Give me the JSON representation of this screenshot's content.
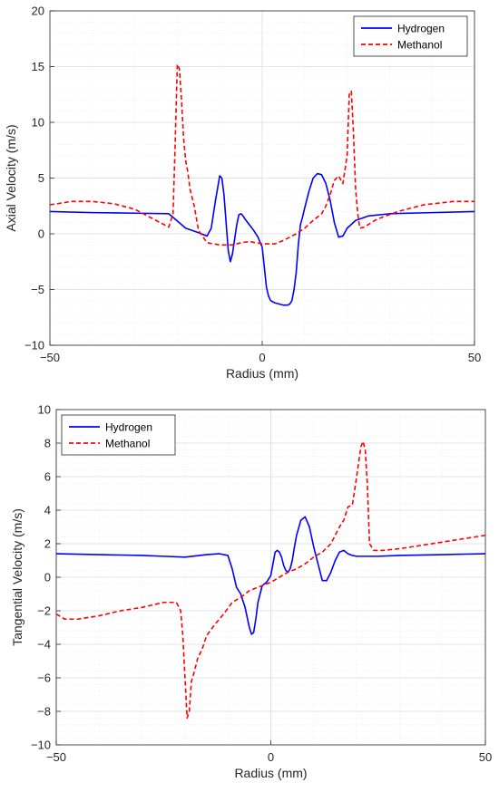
{
  "chart_data": [
    {
      "type": "line",
      "xlabel": "Radius (mm)",
      "ylabel": "Axial Velocity (m/s)",
      "xlim": [
        -50,
        50
      ],
      "ylim": [
        -10,
        20
      ],
      "xticks": [
        -50,
        0,
        50
      ],
      "xtick_labels": [
        "−50",
        "0",
        "50"
      ],
      "yticks": [
        -10,
        -5,
        0,
        5,
        10,
        15,
        20
      ],
      "ytick_labels": [
        "−10",
        "−5",
        "0",
        "5",
        "10",
        "15",
        "20"
      ],
      "grid": true,
      "minor_grid": true,
      "legend_position": "top-right",
      "series": [
        {
          "name": "Hydrogen",
          "color": "#0000ff",
          "style": "solid",
          "x": [
            -50,
            -40,
            -30,
            -22,
            -18,
            -15,
            -13,
            -12,
            -11,
            -10,
            -9.5,
            -9,
            -8.5,
            -8,
            -7.5,
            -7,
            -6.5,
            -6,
            -5.5,
            -5,
            -4.5,
            -4,
            -3,
            -2,
            -1,
            0,
            0.5,
            1,
            1.5,
            2,
            3,
            4,
            5,
            6,
            6.5,
            7,
            7.5,
            8,
            8.5,
            9,
            9.5,
            10,
            11,
            12,
            13,
            14,
            15,
            16,
            17,
            18,
            19,
            20,
            22,
            25,
            30,
            40,
            50
          ],
          "y": [
            2.0,
            1.9,
            1.85,
            1.8,
            0.5,
            0.1,
            -0.2,
            0.5,
            3.0,
            5.2,
            5.0,
            3.5,
            1.0,
            -1.5,
            -2.5,
            -1.8,
            -0.5,
            0.8,
            1.7,
            1.8,
            1.6,
            1.3,
            0.8,
            0.3,
            -0.3,
            -1.2,
            -3.0,
            -4.8,
            -5.6,
            -6.0,
            -6.2,
            -6.3,
            -6.4,
            -6.4,
            -6.3,
            -6.0,
            -5.0,
            -3.5,
            -1.0,
            0.8,
            1.5,
            2.3,
            3.8,
            5.0,
            5.4,
            5.3,
            4.5,
            3.0,
            1.0,
            -0.3,
            -0.2,
            0.5,
            1.2,
            1.6,
            1.8,
            1.9,
            2.0
          ]
        },
        {
          "name": "Methanol",
          "color": "#ff0000",
          "style": "dashed",
          "x": [
            -50,
            -45,
            -40,
            -35,
            -30,
            -25,
            -22,
            -21,
            -20.5,
            -20,
            -19.5,
            -19,
            -18.5,
            -18,
            -17.5,
            -17,
            -16,
            -15,
            -13,
            -10,
            -7,
            -5,
            -3,
            0,
            3,
            5,
            8,
            10,
            12,
            14,
            15,
            16,
            17,
            18,
            19,
            20,
            20.5,
            21,
            21.5,
            22,
            22.5,
            23,
            24,
            27,
            32,
            38,
            45,
            50
          ],
          "y": [
            2.6,
            2.9,
            2.9,
            2.7,
            2.2,
            1.2,
            0.6,
            1.8,
            8.0,
            15.2,
            14.8,
            12.0,
            8.5,
            6.5,
            5.5,
            4.0,
            2.5,
            0.3,
            -0.8,
            -1.0,
            -1.0,
            -0.8,
            -0.7,
            -0.9,
            -0.9,
            -0.6,
            0.0,
            0.5,
            1.2,
            1.8,
            2.5,
            3.5,
            4.8,
            5.2,
            4.5,
            7.0,
            12.5,
            12.8,
            9.0,
            4.0,
            1.8,
            0.5,
            0.6,
            1.3,
            2.0,
            2.6,
            2.9,
            2.9
          ]
        }
      ]
    },
    {
      "type": "line",
      "xlabel": "Radius (mm)",
      "ylabel": "Tangential Velocity (m/s)",
      "xlim": [
        -50,
        50
      ],
      "ylim": [
        -10,
        10
      ],
      "xticks": [
        -50,
        0,
        50
      ],
      "xtick_labels": [
        "−50",
        "0",
        "50"
      ],
      "yticks": [
        -10,
        -8,
        -6,
        -4,
        -2,
        0,
        2,
        4,
        6,
        8,
        10
      ],
      "ytick_labels": [
        "−10",
        "−8",
        "−6",
        "−4",
        "−2",
        "0",
        "2",
        "4",
        "6",
        "8",
        "10"
      ],
      "grid": true,
      "minor_grid": true,
      "legend_position": "top-left",
      "series": [
        {
          "name": "Hydrogen",
          "color": "#0000ff",
          "style": "solid",
          "x": [
            -50,
            -40,
            -30,
            -25,
            -20,
            -15,
            -12,
            -10,
            -9,
            -8,
            -7,
            -6,
            -5,
            -4.5,
            -4,
            -3.5,
            -3,
            -2,
            -1,
            0,
            0.5,
            1,
            1.5,
            2,
            2.5,
            3,
            3.5,
            4,
            4.5,
            5,
            5.5,
            6,
            7,
            8,
            9,
            10,
            11,
            12,
            13,
            14,
            15,
            16,
            17,
            18,
            19,
            20,
            25,
            30,
            40,
            50
          ],
          "y": [
            1.4,
            1.35,
            1.3,
            1.25,
            1.2,
            1.35,
            1.4,
            1.3,
            0.5,
            -0.6,
            -1.0,
            -1.8,
            -3.0,
            -3.4,
            -3.3,
            -2.5,
            -1.5,
            -0.5,
            -0.3,
            0.1,
            0.8,
            1.5,
            1.6,
            1.5,
            1.2,
            0.7,
            0.4,
            0.3,
            0.5,
            1.0,
            1.8,
            2.5,
            3.4,
            3.6,
            3.0,
            1.8,
            0.8,
            -0.2,
            -0.2,
            0.3,
            1.0,
            1.5,
            1.6,
            1.4,
            1.3,
            1.25,
            1.25,
            1.3,
            1.35,
            1.4
          ]
        },
        {
          "name": "Methanol",
          "color": "#ff0000",
          "style": "dashed",
          "x": [
            -50,
            -48,
            -45,
            -40,
            -35,
            -30,
            -25,
            -22,
            -21,
            -20.5,
            -20,
            -19.5,
            -19,
            -18.5,
            -18,
            -17,
            -16,
            -15,
            -13,
            -11,
            -9,
            -7,
            -5,
            -3,
            -1,
            0,
            2,
            4,
            6,
            8,
            10,
            12,
            14,
            16,
            17,
            18,
            19,
            20,
            21,
            21.5,
            22,
            22.5,
            23,
            24,
            26,
            30,
            35,
            40,
            45,
            50
          ],
          "y": [
            -2.2,
            -2.5,
            -2.5,
            -2.3,
            -2.0,
            -1.8,
            -1.5,
            -1.5,
            -2.0,
            -3.5,
            -6.0,
            -8.4,
            -8.0,
            -6.2,
            -5.8,
            -4.8,
            -4.3,
            -3.5,
            -2.8,
            -2.2,
            -1.5,
            -1.2,
            -0.8,
            -0.6,
            -0.4,
            -0.3,
            0.0,
            0.3,
            0.5,
            0.8,
            1.2,
            1.5,
            2.0,
            3.0,
            3.4,
            4.2,
            4.3,
            6.0,
            7.8,
            8.1,
            7.6,
            5.5,
            2.0,
            1.6,
            1.6,
            1.7,
            1.9,
            2.1,
            2.3,
            2.5
          ]
        }
      ]
    }
  ]
}
